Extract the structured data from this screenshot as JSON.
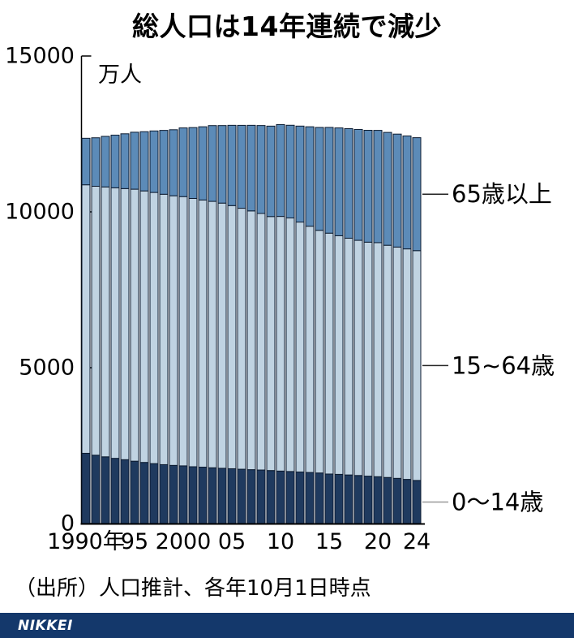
{
  "title": "総人口は14年連続で減少",
  "source": "（出所）人口推計、各年10月1日時点",
  "footer": {
    "brand": "NIKKEI",
    "bg_color": "#14386B"
  },
  "chart_data": {
    "type": "bar",
    "stacked": true,
    "title": "総人口は14年連続で減少",
    "unit_label": "万人",
    "ylim": [
      0,
      15000
    ],
    "yticks": [
      0,
      5000,
      10000,
      15000
    ],
    "ytick_labels": [
      "0",
      "5000",
      "10000",
      "15000"
    ],
    "grid": false,
    "x": [
      1990,
      1991,
      1992,
      1993,
      1994,
      1995,
      1996,
      1997,
      1998,
      1999,
      2000,
      2001,
      2002,
      2003,
      2004,
      2005,
      2006,
      2007,
      2008,
      2009,
      2010,
      2011,
      2012,
      2013,
      2014,
      2015,
      2016,
      2017,
      2018,
      2019,
      2020,
      2021,
      2022,
      2023,
      2024
    ],
    "xtick_labels": [
      {
        "year": 1990,
        "label": "1990年"
      },
      {
        "year": 1995,
        "label": "95"
      },
      {
        "year": 2000,
        "label": "2000"
      },
      {
        "year": 2005,
        "label": "05"
      },
      {
        "year": 2010,
        "label": "10"
      },
      {
        "year": 2015,
        "label": "15"
      },
      {
        "year": 2020,
        "label": "20"
      },
      {
        "year": 2024,
        "label": "24"
      }
    ],
    "series": [
      {
        "name": "0〜14歳",
        "color": "#1F3A5F",
        "values": [
          2254,
          2193,
          2141,
          2092,
          2049,
          2001,
          1961,
          1923,
          1890,
          1866,
          1851,
          1823,
          1810,
          1790,
          1773,
          1759,
          1743,
          1729,
          1718,
          1701,
          1684,
          1670,
          1655,
          1639,
          1623,
          1589,
          1578,
          1559,
          1542,
          1521,
          1503,
          1478,
          1450,
          1417,
          1383
        ]
      },
      {
        "name": "15~64歳",
        "color": "#C0D3E2",
        "values": [
          8614,
          8628,
          8659,
          8680,
          8697,
          8726,
          8711,
          8700,
          8675,
          8650,
          8638,
          8607,
          8571,
          8547,
          8508,
          8442,
          8373,
          8302,
          8230,
          8149,
          8170,
          8134,
          8018,
          7901,
          7785,
          7728,
          7656,
          7596,
          7545,
          7507,
          7509,
          7450,
          7421,
          7395,
          7373
        ]
      },
      {
        "name": "65歳以上",
        "color": "#5C8BB8",
        "values": [
          1493,
          1556,
          1622,
          1690,
          1759,
          1828,
          1900,
          1973,
          2049,
          2119,
          2204,
          2274,
          2349,
          2431,
          2488,
          2576,
          2660,
          2746,
          2822,
          2901,
          2948,
          2975,
          3079,
          3190,
          3300,
          3392,
          3459,
          3515,
          3558,
          3589,
          3603,
          3621,
          3624,
          3623,
          3624
        ]
      }
    ],
    "annotations": [
      {
        "label": "65歳以上",
        "series": 2,
        "line_color": "#222222"
      },
      {
        "label": "15~64歳",
        "series": 1,
        "line_color": "#222222"
      },
      {
        "label": "0〜14歳",
        "series": 0,
        "line_color": "#999999"
      }
    ],
    "bar_stroke_color": "#0C1B30",
    "axis_color": "#000000",
    "legend_position": "right-annotations"
  }
}
